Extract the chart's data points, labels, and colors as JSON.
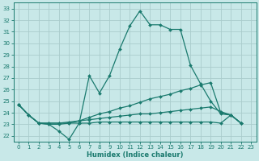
{
  "xlabel": "Humidex (Indice chaleur)",
  "bg_color": "#c8e8e8",
  "grid_color": "#b0d8d8",
  "line_color": "#1a7a6e",
  "xlim": [
    -0.5,
    23.5
  ],
  "ylim": [
    21.5,
    33.5
  ],
  "xticks": [
    0,
    1,
    2,
    3,
    4,
    5,
    6,
    7,
    8,
    9,
    10,
    11,
    12,
    13,
    14,
    15,
    16,
    17,
    18,
    19,
    20,
    21,
    22,
    23
  ],
  "yticks": [
    22,
    23,
    24,
    25,
    26,
    27,
    28,
    29,
    30,
    31,
    32,
    33
  ],
  "series1_x": [
    0,
    1,
    2,
    3,
    4,
    5,
    6,
    7,
    8,
    9,
    10,
    11,
    12,
    13,
    14,
    15,
    16,
    17,
    18,
    19,
    20,
    21,
    22
  ],
  "series1_y": [
    24.7,
    23.8,
    23.1,
    23.0,
    22.4,
    21.7,
    23.1,
    27.2,
    25.7,
    27.2,
    29.5,
    31.5,
    32.8,
    31.6,
    31.6,
    31.2,
    31.2,
    28.1,
    26.5,
    25.0,
    23.9,
    23.8,
    23.1
  ],
  "series2_x": [
    0,
    1,
    2,
    3,
    4,
    5,
    6,
    7,
    8,
    9,
    10,
    11,
    12,
    13,
    14,
    15,
    16,
    17,
    18,
    19,
    20,
    21,
    22
  ],
  "series2_y": [
    24.7,
    23.8,
    23.1,
    23.0,
    23.0,
    23.1,
    23.3,
    23.6,
    23.9,
    24.1,
    24.4,
    24.6,
    24.9,
    25.2,
    25.4,
    25.6,
    25.9,
    26.1,
    26.4,
    26.6,
    24.0,
    23.8,
    23.1
  ],
  "series3_x": [
    0,
    1,
    2,
    3,
    4,
    5,
    6,
    7,
    8,
    9,
    10,
    11,
    12,
    13,
    14,
    15,
    16,
    17,
    18,
    19,
    20,
    21,
    22
  ],
  "series3_y": [
    24.7,
    23.8,
    23.1,
    23.1,
    23.1,
    23.2,
    23.3,
    23.4,
    23.5,
    23.6,
    23.7,
    23.8,
    23.9,
    23.9,
    24.0,
    24.1,
    24.2,
    24.3,
    24.4,
    24.5,
    24.1,
    23.8,
    23.1
  ],
  "series4_x": [
    0,
    1,
    2,
    3,
    4,
    5,
    6,
    7,
    8,
    9,
    10,
    11,
    12,
    13,
    14,
    15,
    16,
    17,
    18,
    19,
    20,
    21,
    22
  ],
  "series4_y": [
    24.7,
    23.8,
    23.1,
    23.1,
    23.1,
    23.1,
    23.1,
    23.1,
    23.2,
    23.2,
    23.2,
    23.2,
    23.2,
    23.2,
    23.2,
    23.2,
    23.2,
    23.2,
    23.2,
    23.2,
    23.1,
    23.8,
    23.1
  ]
}
